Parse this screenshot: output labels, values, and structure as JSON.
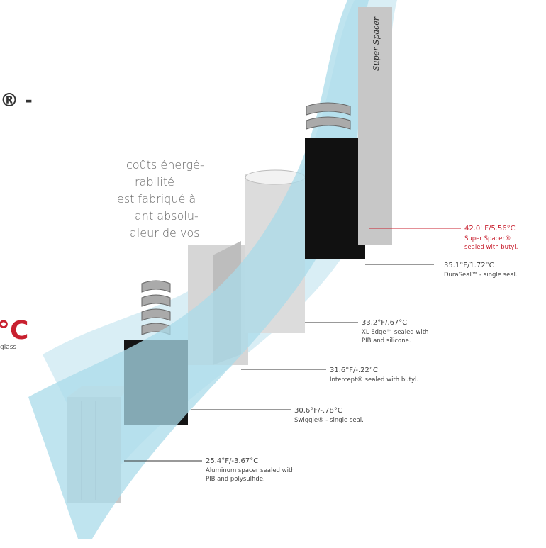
{
  "heading_fragment": "® -",
  "paragraph": [
    "coûts énergé-",
    "rabilité",
    "est fabriqué à",
    "ant absolu-",
    "aleur de vos"
  ],
  "red_fragment": "°C",
  "glass_fragment": "glass",
  "bar_label": "Super Spacer",
  "labels": [
    {
      "temp": "42.0' F/5.56°C",
      "lines": [
        "Super Spacer®",
        "sealed with butyl."
      ]
    },
    {
      "temp": "35.1°F/1.72°C",
      "lines": [
        "DuraSeal™ - single seal."
      ]
    },
    {
      "temp": "33.2°F/.67°C",
      "lines": [
        "XL Edge™ sealed with",
        "PIB and silicone."
      ]
    },
    {
      "temp": "31.6°F/-.22°C",
      "lines": [
        "Intercept® sealed with butyl."
      ]
    },
    {
      "temp": "30.6°F/-.78°C",
      "lines": [
        "Swiggle® - single seal."
      ]
    },
    {
      "temp": "25.4°F/-3.67°C",
      "lines": [
        "Aluminum spacer sealed with",
        "PIB and polysulfide."
      ]
    }
  ]
}
